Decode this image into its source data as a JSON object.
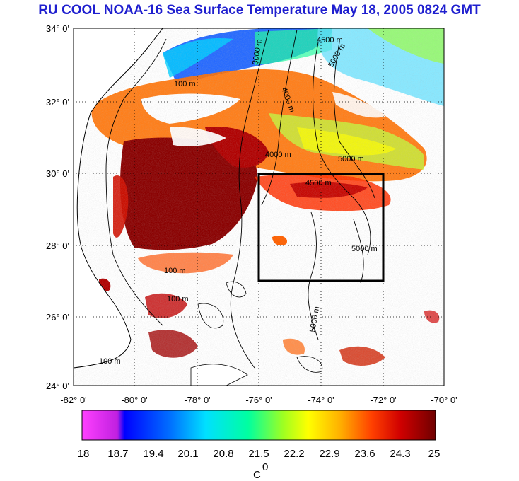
{
  "title": "RU COOL  NOAA-16 Sea Surface Temperature May 18, 2005 0824 GMT",
  "map": {
    "lat_labels": [
      "34° 0'",
      "32° 0'",
      "30° 0'",
      "28° 0'",
      "26° 0'",
      "24° 0'"
    ],
    "lon_labels": [
      "-82° 0'",
      "-80° 0'",
      "-78° 0'",
      "-76° 0'",
      "-74° 0'",
      "-72° 0'",
      "-70° 0'"
    ],
    "study_box": {
      "lon_min": -76,
      "lon_max": -72,
      "lat_min": 27,
      "lat_max": 30
    },
    "contour_labels": [
      "100 m",
      "3000 m",
      "4000 m",
      "4500 m",
      "5000 m"
    ]
  },
  "colorbar": {
    "tick_labels": [
      "18",
      "18.7",
      "19.4",
      "20.1",
      "20.8",
      "21.5",
      "22.2",
      "22.9",
      "23.6",
      "24.3",
      "25"
    ],
    "unit": "C",
    "unit_sup": "0",
    "colors": [
      "#ff40ff",
      "#c020e0",
      "#0000ff",
      "#0060ff",
      "#00c0ff",
      "#00ffc0",
      "#40ff40",
      "#c0ff00",
      "#ffff00",
      "#ffc000",
      "#ff8000",
      "#ff3000",
      "#e00000",
      "#a00000",
      "#700000"
    ]
  }
}
